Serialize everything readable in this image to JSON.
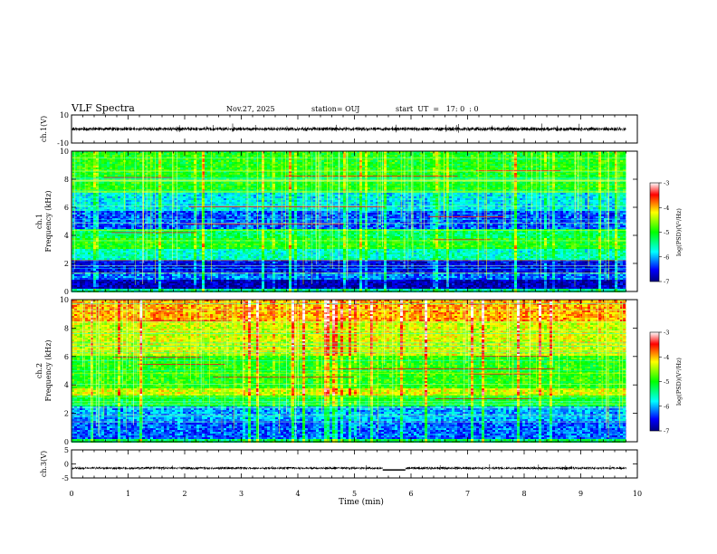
{
  "header": {
    "title": "VLF Spectra",
    "date": "Nov.27, 2025",
    "station": "station= OUJ",
    "start": "start  UT  =   17: 0  : 0"
  },
  "chart_data": [
    {
      "type": "line",
      "panel": "ch1-waveform",
      "ylabel": "ch.1(V)",
      "ylim": [
        -10,
        10
      ],
      "yticks": [
        "10",
        "-10"
      ],
      "baseline": 0
    },
    {
      "type": "heatmap",
      "panel": "ch1-spectrogram",
      "ylabel": "ch.1\nFrequency (kHz)",
      "ylim": [
        0,
        10
      ],
      "yticks": [
        "0",
        "2",
        "4",
        "6",
        "8",
        "10"
      ],
      "bands": [
        {
          "f0": 0.2,
          "f1": 0.9,
          "level": -6.8
        },
        {
          "f0": 0.9,
          "f1": 1.3,
          "level": -6.2
        },
        {
          "f0": 1.3,
          "f1": 2.3,
          "level": -6.6
        },
        {
          "f0": 2.3,
          "f1": 3.0,
          "level": -5.6
        },
        {
          "f0": 3.0,
          "f1": 3.8,
          "level": -5.0
        },
        {
          "f0": 3.8,
          "f1": 4.5,
          "level": -5.3
        },
        {
          "f0": 4.5,
          "f1": 5.8,
          "level": -6.3
        },
        {
          "f0": 5.8,
          "f1": 7.0,
          "level": -5.8
        },
        {
          "f0": 7.0,
          "f1": 10.0,
          "level": -5.0
        }
      ]
    },
    {
      "type": "heatmap",
      "panel": "ch2-spectrogram",
      "ylabel": "ch.2\nFrequency (kHz)",
      "ylim": [
        0,
        10
      ],
      "yticks": [
        "0",
        "2",
        "4",
        "6",
        "8",
        "10"
      ],
      "bands": [
        {
          "f0": 0.2,
          "f1": 1.5,
          "level": -6.5
        },
        {
          "f0": 1.5,
          "f1": 2.5,
          "level": -6.3
        },
        {
          "f0": 2.5,
          "f1": 3.2,
          "level": -5.4
        },
        {
          "f0": 3.2,
          "f1": 3.8,
          "level": -4.6
        },
        {
          "f0": 3.8,
          "f1": 4.8,
          "level": -5.2
        },
        {
          "f0": 4.8,
          "f1": 6.0,
          "level": -5.2
        },
        {
          "f0": 6.0,
          "f1": 8.5,
          "level": -4.6
        },
        {
          "f0": 8.5,
          "f1": 10.0,
          "level": -4.2
        }
      ]
    },
    {
      "type": "line",
      "panel": "ch3-waveform",
      "ylabel": "ch.3(V)",
      "ylim": [
        -5,
        5
      ],
      "yticks": [
        "5",
        "0",
        "-5"
      ],
      "baseline": -1.5
    }
  ],
  "time_axis": {
    "xlabel": "Time  (min)",
    "xlim": [
      0,
      10
    ],
    "data_end": 9.8,
    "ticks": [
      "0",
      "1",
      "2",
      "3",
      "4",
      "5",
      "6",
      "7",
      "8",
      "9",
      "10"
    ]
  },
  "colorbar": {
    "label": "log(PSD)(V²/Hz)",
    "range": [
      -7,
      -3
    ],
    "ticks": [
      "-3",
      "-4",
      "-5",
      "-6",
      "-7"
    ]
  }
}
